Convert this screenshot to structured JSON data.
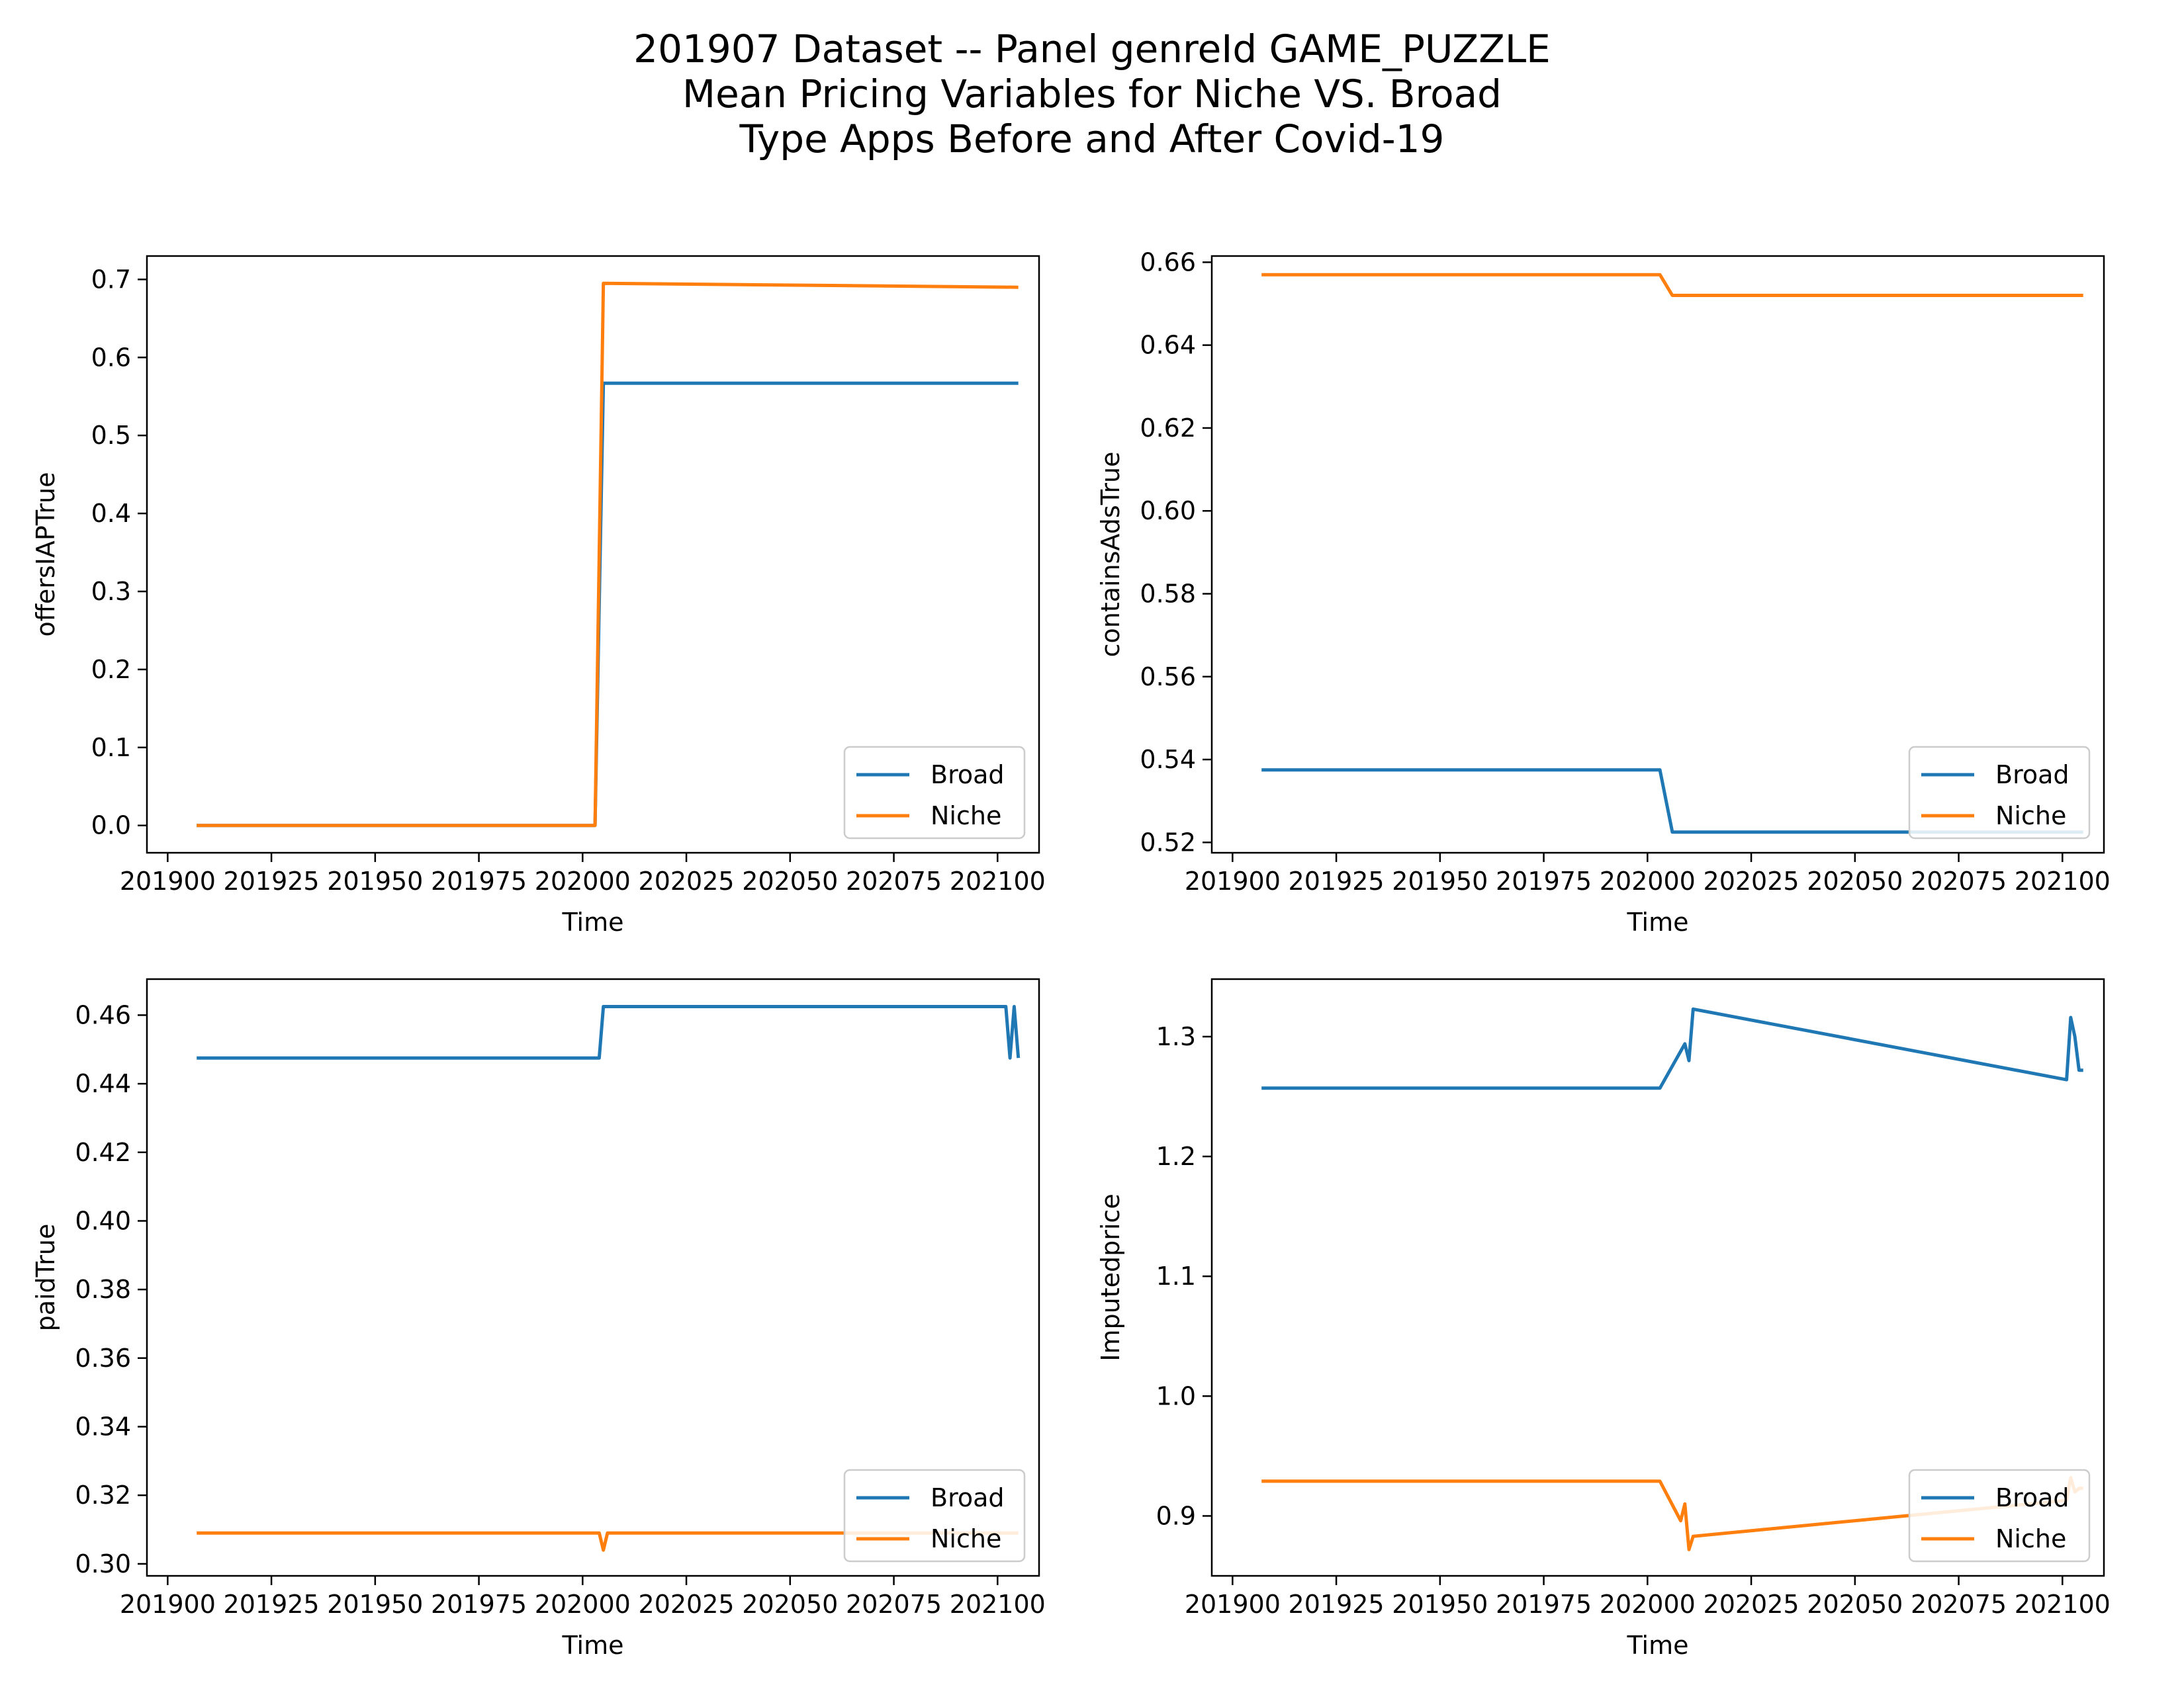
{
  "figure": {
    "title_lines": [
      "201907 Dataset -- Panel genreId GAME_PUZZLE",
      "Mean Pricing Variables for Niche VS. Broad",
      "Type Apps Before and After Covid-19"
    ]
  },
  "colors": {
    "Broad": "#1f77b4",
    "Niche": "#ff7f0e"
  },
  "chart_data": [
    {
      "type": "line",
      "xlabel": "Time",
      "ylabel": "offersIAPTrue",
      "xlim": [
        201895,
        202110
      ],
      "ylim": [
        -0.035,
        0.73
      ],
      "xticks": [
        201900,
        201925,
        201950,
        201975,
        202000,
        202025,
        202050,
        202075,
        202100
      ],
      "yticks": [
        0.0,
        0.1,
        0.2,
        0.3,
        0.4,
        0.5,
        0.6,
        0.7
      ],
      "ytick_decimals": 1,
      "legend": "lower-right",
      "series": [
        {
          "name": "Broad",
          "x": [
            201907,
            202003,
            202005,
            202105
          ],
          "y": [
            0.0,
            0.0,
            0.567,
            0.567
          ]
        },
        {
          "name": "Niche",
          "x": [
            201907,
            202003,
            202005,
            202105
          ],
          "y": [
            0.0,
            0.0,
            0.695,
            0.69
          ]
        }
      ]
    },
    {
      "type": "line",
      "xlabel": "Time",
      "ylabel": "containsAdsTrue",
      "xlim": [
        201895,
        202110
      ],
      "ylim": [
        0.5175,
        0.6615
      ],
      "xticks": [
        201900,
        201925,
        201950,
        201975,
        202000,
        202025,
        202050,
        202075,
        202100
      ],
      "yticks": [
        0.52,
        0.54,
        0.56,
        0.58,
        0.6,
        0.62,
        0.64,
        0.66
      ],
      "ytick_decimals": 2,
      "legend": "lower-right",
      "series": [
        {
          "name": "Broad",
          "x": [
            201907,
            202003,
            202006,
            202105
          ],
          "y": [
            0.5375,
            0.5375,
            0.5225,
            0.5225
          ]
        },
        {
          "name": "Niche",
          "x": [
            201907,
            202003,
            202006,
            202105
          ],
          "y": [
            0.657,
            0.657,
            0.652,
            0.652
          ]
        }
      ]
    },
    {
      "type": "line",
      "xlabel": "Time",
      "ylabel": "paidTrue",
      "xlim": [
        201895,
        202110
      ],
      "ylim": [
        0.2965,
        0.4705
      ],
      "xticks": [
        201900,
        201925,
        201950,
        201975,
        202000,
        202025,
        202050,
        202075,
        202100
      ],
      "yticks": [
        0.3,
        0.32,
        0.34,
        0.36,
        0.38,
        0.4,
        0.42,
        0.44,
        0.46
      ],
      "ytick_decimals": 2,
      "legend": "lower-right",
      "series": [
        {
          "name": "Broad",
          "x": [
            201907,
            202004,
            202005,
            202102,
            202103,
            202104,
            202105
          ],
          "y": [
            0.4475,
            0.4475,
            0.4625,
            0.4625,
            0.4475,
            0.4625,
            0.4475
          ]
        },
        {
          "name": "Niche",
          "x": [
            201907,
            202004,
            202005,
            202006,
            202102,
            202103,
            202104,
            202105
          ],
          "y": [
            0.309,
            0.309,
            0.304,
            0.309,
            0.309,
            0.309,
            0.309,
            0.309
          ]
        }
      ]
    },
    {
      "type": "line",
      "xlabel": "Time",
      "ylabel": "Imputedprice",
      "xlim": [
        201895,
        202110
      ],
      "ylim": [
        0.85,
        1.348
      ],
      "xticks": [
        201900,
        201925,
        201950,
        201975,
        202000,
        202025,
        202050,
        202075,
        202100
      ],
      "yticks": [
        0.9,
        1.0,
        1.1,
        1.2,
        1.3
      ],
      "ytick_decimals": 1,
      "legend": "lower-right",
      "series": [
        {
          "name": "Broad",
          "x": [
            201907,
            202003,
            202009,
            202010,
            202011,
            202101,
            202102,
            202103,
            202104,
            202105
          ],
          "y": [
            1.257,
            1.257,
            1.294,
            1.28,
            1.323,
            1.264,
            1.316,
            1.3,
            1.272,
            1.272
          ]
        },
        {
          "name": "Niche",
          "x": [
            201907,
            202003,
            202008,
            202009,
            202010,
            202011,
            202101,
            202102,
            202103,
            202104,
            202105
          ],
          "y": [
            0.929,
            0.929,
            0.896,
            0.91,
            0.872,
            0.883,
            0.913,
            0.932,
            0.92,
            0.923,
            0.923
          ]
        }
      ]
    }
  ]
}
